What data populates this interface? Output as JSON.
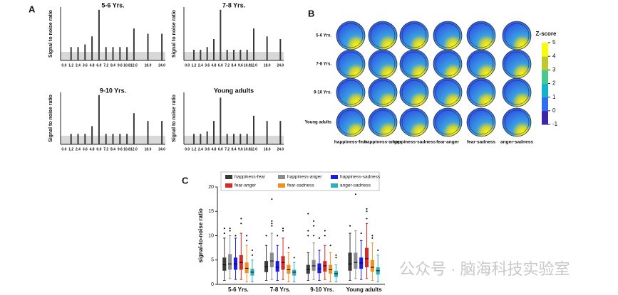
{
  "panel_labels": [
    "A",
    "B",
    "C"
  ],
  "watermark": "公众号 · 脑海科技实验室",
  "chart_data": [
    {
      "type": "bar",
      "title": "5-6 Yrs.",
      "ylabel": "Signal to noise ratio",
      "color": "#3a3a3a",
      "ylim": [
        0,
        10
      ],
      "categories": [
        "0.0",
        "1.2",
        "2.4",
        "3.6",
        "4.8",
        "6.0",
        "7.2",
        "8.4",
        "9.6",
        "10.8",
        "12.0",
        "18.0",
        "24.0"
      ],
      "values": [
        null,
        2.5,
        2.5,
        3,
        4.5,
        9.5,
        2.5,
        2.5,
        2.5,
        2.5,
        6,
        5,
        5
      ]
    },
    {
      "type": "bar",
      "title": "7-8 Yrs.",
      "ylabel": "Signal to noise ratio",
      "color": "#3a3a3a",
      "ylim": [
        0,
        10
      ],
      "categories": [
        "0.0",
        "1.2",
        "2.4",
        "3.6",
        "4.8",
        "6.0",
        "7.2",
        "8.4",
        "9.6",
        "10.8",
        "12.0",
        "18.0",
        "24.0"
      ],
      "values": [
        null,
        2,
        2,
        2.5,
        4,
        9.5,
        2,
        2,
        2,
        2,
        6,
        4.5,
        4
      ]
    },
    {
      "type": "bar",
      "title": "9-10 Yrs.",
      "ylabel": "Signal to noise ratio",
      "color": "#3a3a3a",
      "ylim": [
        0,
        10
      ],
      "categories": [
        "0.0",
        "1.2",
        "2.4",
        "3.6",
        "4.8",
        "6.0",
        "7.2",
        "8.4",
        "9.6",
        "10.8",
        "12.0",
        "18.0",
        "24.0"
      ],
      "values": [
        null,
        2,
        2,
        2,
        3.5,
        9.5,
        2,
        2,
        2,
        2,
        6,
        4.5,
        4.5
      ]
    },
    {
      "type": "bar",
      "title": "Young adults",
      "ylabel": "Signal to noise ratio",
      "color": "#3a3a3a",
      "ylim": [
        0,
        10
      ],
      "categories": [
        "0.0",
        "1.2",
        "2.4",
        "3.6",
        "4.8",
        "6.0",
        "7.2",
        "8.4",
        "9.6",
        "10.8",
        "12.0",
        "18.0",
        "24.0"
      ],
      "values": [
        null,
        2,
        2,
        2.5,
        4.5,
        9,
        2,
        2,
        2,
        2,
        5.5,
        4.5,
        4.5
      ]
    },
    {
      "type": "topomap",
      "rows": [
        "5-6 Yrs.",
        "7-8 Yrs.",
        "9-10 Yrs.",
        "Young adults"
      ],
      "columns": [
        "happiness-fear",
        "happiness-anger",
        "happiness-sadness",
        "fear-anger",
        "fear-sadness",
        "anger-sadness"
      ],
      "colorbar_title": "Z-score",
      "colorbar_lim": [
        -1,
        5
      ],
      "colorbar_ticks": [
        5,
        4,
        3,
        2,
        1,
        0,
        -1
      ],
      "colormap": [
        "#3e26a8",
        "#2f6ef0",
        "#16b0d0",
        "#48c890",
        "#c0c830",
        "#f9fb0e"
      ]
    },
    {
      "type": "box",
      "ylabel": "signal-to-noise ratio",
      "ylim": [
        0,
        20
      ],
      "yticks": [
        0,
        5,
        10,
        15,
        20
      ],
      "categories": [
        "5-6 Yrs.",
        "7-8 Yrs.",
        "9-10 Yrs.",
        "Young adults"
      ],
      "series": [
        {
          "name": "happiness-fear",
          "color": "#3a3a3a",
          "values": [
            {
              "whislo": 0.8,
              "q1": 2.8,
              "med": 4,
              "q3": 5.5,
              "whishi": 9.5,
              "fliers": [
                10.5,
                11.5
              ]
            },
            {
              "whislo": 0.8,
              "q1": 2.5,
              "med": 3.6,
              "q3": 4.8,
              "whishi": 8,
              "fliers": [
                10
              ]
            },
            {
              "whislo": 0.8,
              "q1": 2.2,
              "med": 3,
              "q3": 4,
              "whishi": 6.5,
              "fliers": [
                10,
                11,
                14.5
              ]
            },
            {
              "whislo": 0.8,
              "q1": 2.8,
              "med": 4.2,
              "q3": 6.5,
              "whishi": 10.5,
              "fliers": [
                12
              ]
            }
          ]
        },
        {
          "name": "happiness-anger",
          "color": "#8c8c8c",
          "values": [
            {
              "whislo": 1.2,
              "q1": 3,
              "med": 4.2,
              "q3": 6.2,
              "whishi": 10,
              "fliers": [
                11,
                11.5
              ]
            },
            {
              "whislo": 1,
              "q1": 3.5,
              "med": 4.8,
              "q3": 6.5,
              "whishi": 10.5,
              "fliers": [
                12,
                12.5,
                13,
                17.5
              ]
            },
            {
              "whislo": 1,
              "q1": 2.8,
              "med": 3.8,
              "q3": 5,
              "whishi": 8.5,
              "fliers": [
                10,
                12,
                13
              ]
            },
            {
              "whislo": 1.2,
              "q1": 3.2,
              "med": 4.5,
              "q3": 6.5,
              "whishi": 11,
              "fliers": [
                18.5
              ]
            }
          ]
        },
        {
          "name": "happiness-sadness",
          "color": "#1a1ae6",
          "values": [
            {
              "whislo": 1,
              "q1": 3,
              "med": 4.2,
              "q3": 5.5,
              "whishi": 9.5,
              "fliers": [
                10
              ]
            },
            {
              "whislo": 0.8,
              "q1": 2.6,
              "med": 3.5,
              "q3": 4.8,
              "whishi": 8,
              "fliers": [
                10
              ]
            },
            {
              "whislo": 0.8,
              "q1": 2.3,
              "med": 3.2,
              "q3": 4.3,
              "whishi": 7,
              "fliers": [
                9.5
              ]
            },
            {
              "whislo": 1,
              "q1": 3.2,
              "med": 4.4,
              "q3": 5.5,
              "whishi": 9,
              "fliers": [
                10.5
              ]
            }
          ]
        },
        {
          "name": "fear-anger",
          "color": "#d42a2a",
          "values": [
            {
              "whislo": 1,
              "q1": 3,
              "med": 4.5,
              "q3": 6,
              "whishi": 10.5,
              "fliers": [
                12.5,
                13.5
              ]
            },
            {
              "whislo": 1,
              "q1": 3,
              "med": 4.5,
              "q3": 5.8,
              "whishi": 9.5,
              "fliers": [
                11,
                11.5
              ]
            },
            {
              "whislo": 1,
              "q1": 2.6,
              "med": 3.8,
              "q3": 4.8,
              "whishi": 8,
              "fliers": [
                10,
                11
              ]
            },
            {
              "whislo": 1.2,
              "q1": 3.5,
              "med": 5.3,
              "q3": 7.5,
              "whishi": 12.5,
              "fliers": [
                13.5,
                15,
                15.5
              ]
            }
          ]
        },
        {
          "name": "fear-sadness",
          "color": "#f0901e",
          "values": [
            {
              "whislo": 0.5,
              "q1": 2.3,
              "med": 3.3,
              "q3": 4.5,
              "whishi": 8,
              "fliers": [
                9,
                10
              ]
            },
            {
              "whislo": 0.5,
              "q1": 2.2,
              "med": 3,
              "q3": 4,
              "whishi": 6.5,
              "fliers": [
                7.5
              ]
            },
            {
              "whislo": 0.5,
              "q1": 2.2,
              "med": 3,
              "q3": 4,
              "whishi": 6.5,
              "fliers": [
                8
              ]
            },
            {
              "whislo": 0.8,
              "q1": 2.6,
              "med": 3.5,
              "q3": 5,
              "whishi": 8.5,
              "fliers": [
                9.5,
                10
              ]
            }
          ]
        },
        {
          "name": "anger-sadness",
          "color": "#2fb0b8",
          "values": [
            {
              "whislo": 0.5,
              "q1": 1.8,
              "med": 2.5,
              "q3": 3.2,
              "whishi": 5,
              "fliers": [
                6,
                7
              ]
            },
            {
              "whislo": 0.5,
              "q1": 1.8,
              "med": 2.5,
              "q3": 3,
              "whishi": 4.5,
              "fliers": [
                5.5
              ]
            },
            {
              "whislo": 0.5,
              "q1": 1.5,
              "med": 2.2,
              "q3": 2.8,
              "whishi": 4,
              "fliers": [
                5.5,
                6
              ]
            },
            {
              "whislo": 0.5,
              "q1": 2,
              "med": 2.8,
              "q3": 3.5,
              "whishi": 6,
              "fliers": [
                7
              ]
            }
          ]
        }
      ]
    }
  ]
}
